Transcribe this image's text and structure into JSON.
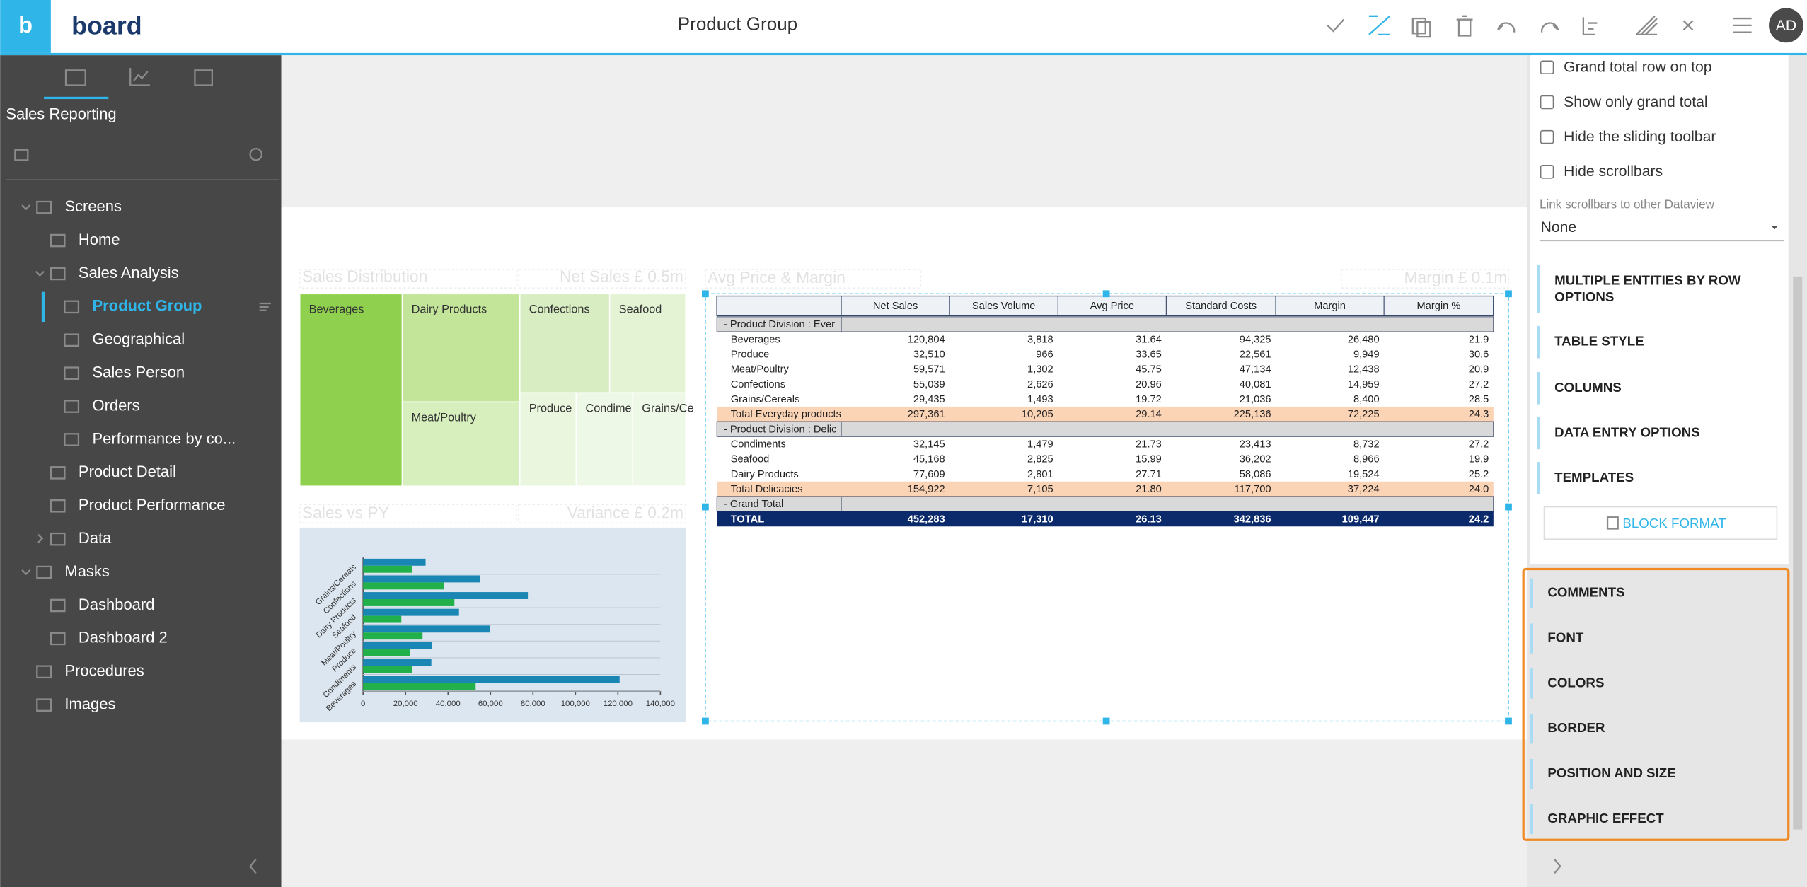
{
  "header": {
    "logo": "board",
    "title": "Product Group",
    "user": "AD"
  },
  "sidebar": {
    "title": "Sales Reporting",
    "tree": [
      {
        "label": "Screens",
        "depth": 0,
        "expanded": true
      },
      {
        "label": "Home",
        "depth": 1
      },
      {
        "label": "Sales Analysis",
        "depth": 1,
        "expanded": true
      },
      {
        "label": "Product Group",
        "depth": 2,
        "selected": true
      },
      {
        "label": "Geographical",
        "depth": 2
      },
      {
        "label": "Sales Person",
        "depth": 2
      },
      {
        "label": "Orders",
        "depth": 2
      },
      {
        "label": "Performance by co...",
        "depth": 2
      },
      {
        "label": "Product Detail",
        "depth": 1
      },
      {
        "label": "Product Performance",
        "depth": 1
      },
      {
        "label": "Data",
        "depth": 1,
        "expanded": false
      },
      {
        "label": "Masks",
        "depth": 0,
        "expanded": true
      },
      {
        "label": "Dashboard",
        "depth": 1
      },
      {
        "label": "Dashboard 2",
        "depth": 1
      },
      {
        "label": "Procedures",
        "depth": 0
      },
      {
        "label": "Images",
        "depth": 0
      }
    ]
  },
  "canvas": {
    "widget_titles": [
      "Sales Distribution",
      "Net Sales £ 0.5m",
      "Sales vs PY",
      "Variance £ 0.2m",
      "Avg Price & Margin",
      "Margin £ 0.1m"
    ],
    "treemap": {
      "labels": [
        "Beverages",
        "Dairy Products",
        "Meat/Poultry",
        "Confections",
        "Seafood",
        "Produce",
        "Condimen",
        "Grains/Ce"
      ]
    },
    "sales_vs_py": {
      "type": "bar",
      "orientation": "horizontal",
      "grid": true,
      "categories": [
        "Grains/Cereals",
        "Confections",
        "Dairy Products",
        "Seafood",
        "Meat/Poultry",
        "Produce",
        "Condiments",
        "Beverages"
      ],
      "series": [
        {
          "color": "#1a86b4",
          "values": [
            29435,
            55039,
            77609,
            45168,
            59571,
            32510,
            32145,
            120804
          ]
        },
        {
          "color": "#22b04b",
          "values": [
            23000,
            38000,
            43000,
            18000,
            28000,
            22000,
            23000,
            53000
          ]
        }
      ],
      "xlim": [
        0,
        140000
      ],
      "xticks": [
        0,
        {
          "value": 20000,
          "label": "20,000"
        },
        {
          "value": 40000,
          "label": "40,000"
        },
        {
          "value": 60000,
          "label": "60,000"
        },
        {
          "value": 80000,
          "label": "80,000"
        },
        {
          "value": 100000,
          "label": "100,000"
        },
        {
          "value": 120000,
          "label": "120,000"
        },
        {
          "value": 140000,
          "label": "140,000"
        }
      ]
    },
    "table": {
      "header": [
        "Net Sales",
        "Sales Volume",
        "Avg Price",
        "Standard Costs",
        "Margin",
        "Margin %"
      ],
      "rows": [
        {
          "kind": "group",
          "cells": [
            "-  Product Division : Ever"
          ]
        },
        {
          "kind": "item",
          "cells": [
            "Beverages",
            "120,804",
            "3,818",
            "31.64",
            "94,325",
            "26,480",
            "21.9"
          ]
        },
        {
          "kind": "item",
          "cells": [
            "Produce",
            "32,510",
            "966",
            "33.65",
            "22,561",
            "9,949",
            "30.6"
          ]
        },
        {
          "kind": "item",
          "cells": [
            "Meat/Poultry",
            "59,571",
            "1,302",
            "45.75",
            "47,134",
            "12,438",
            "20.9"
          ]
        },
        {
          "kind": "item",
          "cells": [
            "Confections",
            "55,039",
            "2,626",
            "20.96",
            "40,081",
            "14,959",
            "27.2"
          ]
        },
        {
          "kind": "item",
          "cells": [
            "Grains/Cereals",
            "29,435",
            "1,493",
            "19.72",
            "21,036",
            "8,400",
            "28.5"
          ]
        },
        {
          "kind": "total",
          "cells": [
            "Total Everyday products",
            "297,361",
            "10,205",
            "29.14",
            "225,136",
            "72,225",
            "24.3"
          ]
        },
        {
          "kind": "group",
          "cells": [
            "-  Product Division : Delic"
          ]
        },
        {
          "kind": "item",
          "cells": [
            "Condiments",
            "32,145",
            "1,479",
            "21.73",
            "23,413",
            "8,732",
            "27.2"
          ]
        },
        {
          "kind": "item",
          "cells": [
            "Seafood",
            "45,168",
            "2,825",
            "15.99",
            "36,202",
            "8,966",
            "19.9"
          ]
        },
        {
          "kind": "item",
          "cells": [
            "Dairy Products",
            "77,609",
            "2,801",
            "27.71",
            "58,086",
            "19,524",
            "25.2"
          ]
        },
        {
          "kind": "total",
          "cells": [
            "Total Delicacies",
            "154,922",
            "7,105",
            "21.80",
            "117,700",
            "37,224",
            "24.0"
          ]
        },
        {
          "kind": "group",
          "cells": [
            "-  Grand Total"
          ]
        },
        {
          "kind": "grand",
          "cells": [
            "TOTAL",
            "452,283",
            "17,310",
            "26.13",
            "342,836",
            "109,447",
            "24.2"
          ]
        }
      ]
    }
  },
  "panel": {
    "checkboxes": [
      "Grand total row on top",
      "Show only grand total",
      "Hide the sliding toolbar",
      "Hide scrollbars"
    ],
    "link_label": "Link scrollbars to other Dataview",
    "link_value": "None",
    "sections": [
      "MULTIPLE ENTITIES BY ROW OPTIONS",
      "TABLE STYLE",
      "COLUMNS",
      "DATA ENTRY OPTIONS",
      "TEMPLATES"
    ],
    "button": "BLOCK FORMAT",
    "highlighted_sections": [
      "COMMENTS",
      "FONT",
      "COLORS",
      "BORDER",
      "POSITION AND SIZE",
      "GRAPHIC EFFECT"
    ]
  }
}
